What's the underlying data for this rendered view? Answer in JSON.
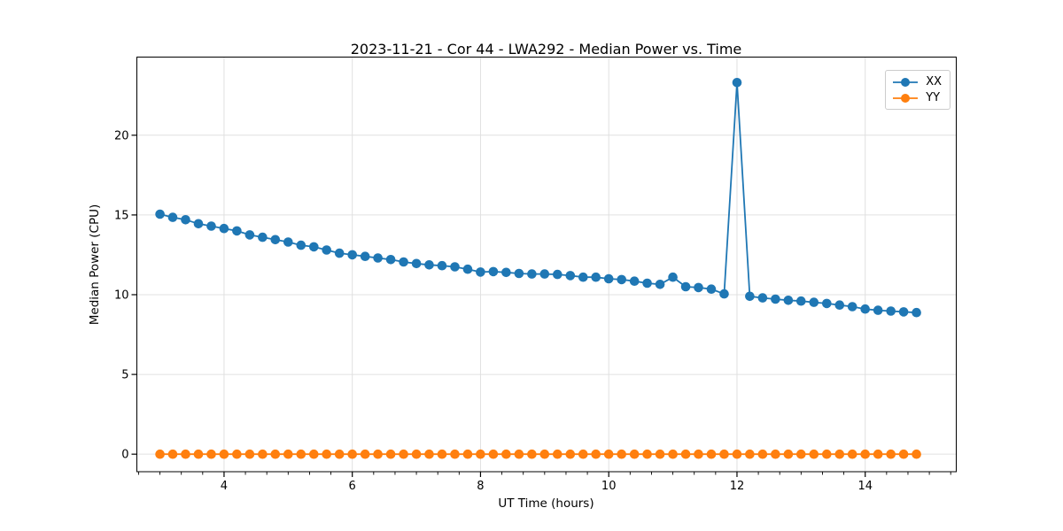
{
  "title": "2023-11-21 - Cor 44 - LWA292 - Median Power vs. Time",
  "chart_data": {
    "type": "line",
    "title": "2023-11-21 - Cor 44 - LWA292 - Median Power vs. Time",
    "xlabel": "UT Time (hours)",
    "ylabel": "Median Power (CPU)",
    "xlim": [
      2.64,
      15.42
    ],
    "ylim": [
      -1.1,
      24.9
    ],
    "xticks": [
      4,
      6,
      8,
      10,
      12,
      14
    ],
    "yticks": [
      0,
      5,
      10,
      15,
      20
    ],
    "x_minor_tick_step": 0.3333333,
    "grid": true,
    "legend_position": "upper-right",
    "x": [
      3.0,
      3.2,
      3.4,
      3.6,
      3.8,
      4.0,
      4.2,
      4.4,
      4.6,
      4.8,
      5.0,
      5.2,
      5.4,
      5.6,
      5.8,
      6.0,
      6.2,
      6.4,
      6.6,
      6.8,
      7.0,
      7.2,
      7.4,
      7.6,
      7.8,
      8.0,
      8.2,
      8.4,
      8.6,
      8.8,
      9.0,
      9.2,
      9.4,
      9.6,
      9.8,
      10.0,
      10.2,
      10.4,
      10.6,
      10.8,
      11.0,
      11.2,
      11.4,
      11.6,
      11.8,
      12.0,
      12.2,
      12.4,
      12.6,
      12.8,
      13.0,
      13.2,
      13.4,
      13.6,
      13.8,
      14.0,
      14.2,
      14.4,
      14.6,
      14.8
    ],
    "series": [
      {
        "name": "XX",
        "color": "#1f77b4",
        "values": [
          15.05,
          14.85,
          14.7,
          14.45,
          14.3,
          14.15,
          14.0,
          13.75,
          13.6,
          13.45,
          13.3,
          13.1,
          13.0,
          12.8,
          12.6,
          12.5,
          12.4,
          12.3,
          12.2,
          12.05,
          11.95,
          11.87,
          11.82,
          11.75,
          11.6,
          11.42,
          11.45,
          11.4,
          11.33,
          11.3,
          11.3,
          11.27,
          11.2,
          11.1,
          11.1,
          11.0,
          10.95,
          10.85,
          10.72,
          10.65,
          11.1,
          10.5,
          10.45,
          10.35,
          10.05,
          23.3,
          9.9,
          9.8,
          9.72,
          9.65,
          9.6,
          9.52,
          9.45,
          9.35,
          9.25,
          9.1,
          9.02,
          8.97,
          8.92,
          8.88
        ]
      },
      {
        "name": "YY",
        "color": "#ff7f0e",
        "values": [
          0,
          0,
          0,
          0,
          0,
          0,
          0,
          0,
          0,
          0,
          0,
          0,
          0,
          0,
          0,
          0,
          0,
          0,
          0,
          0,
          0,
          0,
          0,
          0,
          0,
          0,
          0,
          0,
          0,
          0,
          0,
          0,
          0,
          0,
          0,
          0,
          0,
          0,
          0,
          0,
          0,
          0,
          0,
          0,
          0,
          0,
          0,
          0,
          0,
          0,
          0,
          0,
          0,
          0,
          0,
          0,
          0,
          0,
          0,
          0
        ]
      }
    ]
  },
  "colors": {
    "grid": "#e0e0e0",
    "axis": "#000000",
    "background": "#ffffff",
    "legend_border": "#cccccc"
  }
}
